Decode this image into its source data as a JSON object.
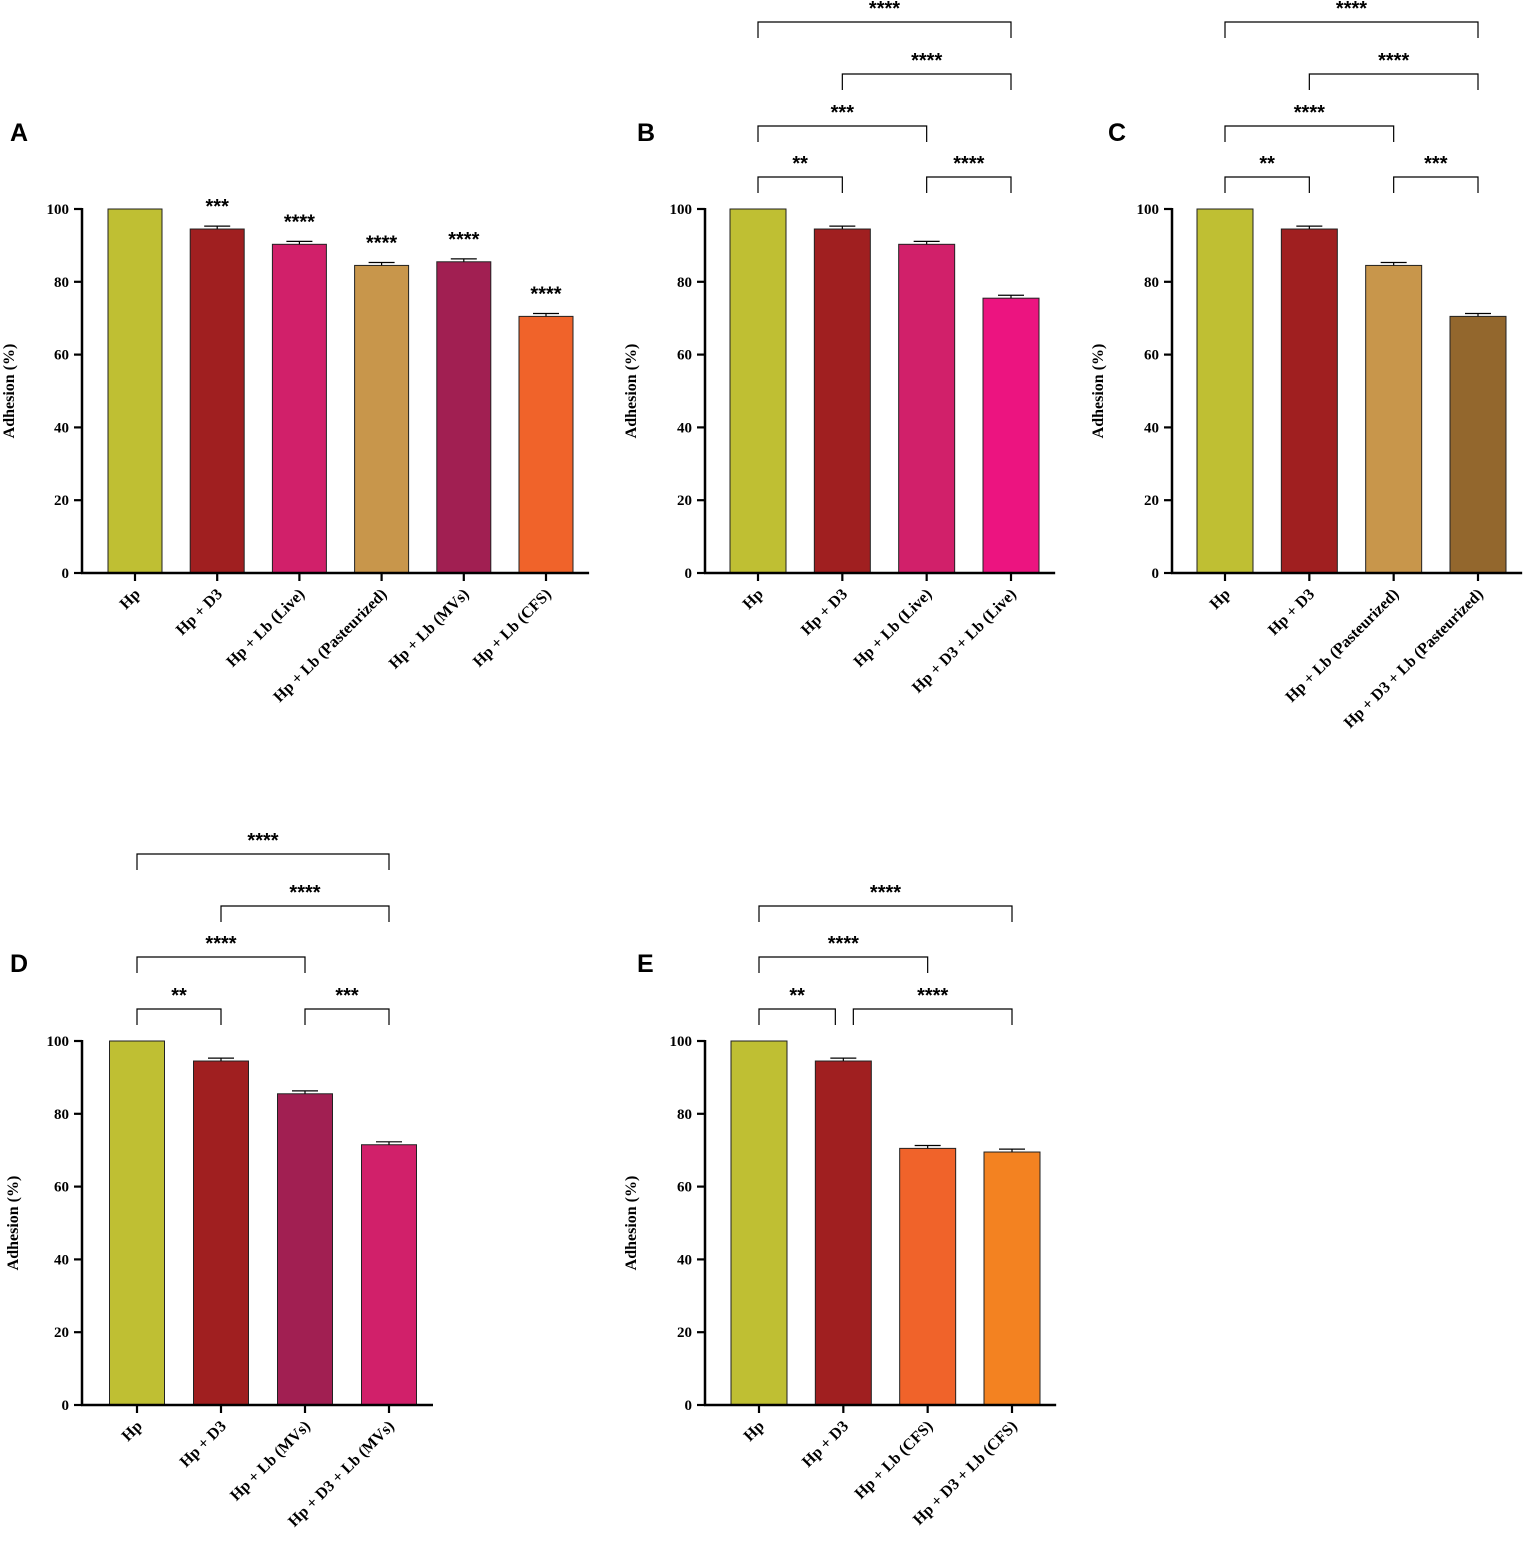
{
  "figure": {
    "ylabel": "Adhesion (%)"
  },
  "chart_data": [
    {
      "panel": "A",
      "type": "bar",
      "ylabel": "Adhesion (%)",
      "ylim": [
        0,
        100
      ],
      "yticks": [
        0,
        20,
        40,
        60,
        80,
        100
      ],
      "categories": [
        "Hp",
        "Hp + D3",
        "Hp + Lb (Live)",
        "Hp + Lb (Pasteurized)",
        "Hp + Lb (MVs)",
        "Hp + Lb (CFS)"
      ],
      "values": [
        100,
        94.5,
        90.3,
        84.5,
        85.5,
        70.5
      ],
      "errors": [
        0,
        0.8,
        0.8,
        0.8,
        0.8,
        0.8
      ],
      "colors": [
        "#bfbf33",
        "#a01f20",
        "#d1206a",
        "#c8964b",
        "#a11f52",
        "#f0632a"
      ],
      "bar_annotations": [
        "",
        "***",
        "****",
        "****",
        "****",
        "****"
      ],
      "brackets": []
    },
    {
      "panel": "B",
      "type": "bar",
      "ylabel": "Adhesion (%)",
      "ylim": [
        0,
        100
      ],
      "yticks": [
        0,
        20,
        40,
        60,
        80,
        100
      ],
      "categories": [
        "Hp",
        "Hp + D3",
        "Hp + Lb (Live)",
        "Hp + D3 + Lb (Live)"
      ],
      "values": [
        100,
        94.5,
        90.3,
        75.5
      ],
      "errors": [
        0,
        0.8,
        0.8,
        0.8
      ],
      "colors": [
        "#bfbf33",
        "#a01f20",
        "#d1206a",
        "#ec1480"
      ],
      "bar_annotations": [
        "",
        "",
        "",
        ""
      ],
      "brackets": [
        {
          "from": "Hp",
          "to": "Hp + D3 + Lb (Live)",
          "label": "****"
        },
        {
          "from": "Hp + D3",
          "to": "Hp + D3 + Lb (Live)",
          "label": "****"
        },
        {
          "from": "Hp",
          "to": "Hp + Lb (Live)",
          "label": "***"
        },
        {
          "from": "Hp",
          "to": "Hp + D3",
          "label": "**"
        },
        {
          "from": "Hp + Lb (Live)",
          "to": "Hp + D3 + Lb (Live)",
          "label": "****"
        }
      ]
    },
    {
      "panel": "C",
      "type": "bar",
      "ylabel": "Adhesion (%)",
      "ylim": [
        0,
        100
      ],
      "yticks": [
        0,
        20,
        40,
        60,
        80,
        100
      ],
      "categories": [
        "Hp",
        "Hp + D3",
        "Hp + Lb (Pasteurized)",
        "Hp + D3 + Lb (Pasteurized)"
      ],
      "values": [
        100,
        94.5,
        84.5,
        70.5
      ],
      "errors": [
        0,
        0.8,
        0.8,
        0.8
      ],
      "colors": [
        "#bfbf33",
        "#a01f20",
        "#c8964b",
        "#93672d"
      ],
      "bar_annotations": [
        "",
        "",
        "",
        ""
      ],
      "brackets": [
        {
          "from": "Hp",
          "to": "Hp + D3 + Lb (Pasteurized)",
          "label": "****"
        },
        {
          "from": "Hp + D3",
          "to": "Hp + D3 + Lb (Pasteurized)",
          "label": "****"
        },
        {
          "from": "Hp",
          "to": "Hp + Lb (Pasteurized)",
          "label": "****"
        },
        {
          "from": "Hp",
          "to": "Hp + D3",
          "label": "**"
        },
        {
          "from": "Hp + Lb (Pasteurized)",
          "to": "Hp + D3 + Lb (Pasteurized)",
          "label": "***"
        }
      ]
    },
    {
      "panel": "D",
      "type": "bar",
      "ylabel": "Adhesion (%)",
      "ylim": [
        0,
        100
      ],
      "yticks": [
        0,
        20,
        40,
        60,
        80,
        100
      ],
      "categories": [
        "Hp",
        "Hp + D3",
        "Hp + Lb (MVs)",
        "Hp + D3 + Lb (MVs)"
      ],
      "values": [
        100,
        94.5,
        85.5,
        71.5
      ],
      "errors": [
        0,
        0.8,
        0.8,
        0.8
      ],
      "colors": [
        "#bfbf33",
        "#a01f20",
        "#a11f52",
        "#d1206a"
      ],
      "bar_annotations": [
        "",
        "",
        "",
        ""
      ],
      "brackets": [
        {
          "from": "Hp",
          "to": "Hp + D3 + Lb (MVs)",
          "label": "****"
        },
        {
          "from": "Hp + D3",
          "to": "Hp + D3 + Lb (MVs)",
          "label": "****"
        },
        {
          "from": "Hp",
          "to": "Hp + Lb (MVs)",
          "label": "****"
        },
        {
          "from": "Hp",
          "to": "Hp + D3",
          "label": "**"
        },
        {
          "from": "Hp + Lb (MVs)",
          "to": "Hp + D3 + Lb (MVs)",
          "label": "***"
        }
      ]
    },
    {
      "panel": "E",
      "type": "bar",
      "ylabel": "Adhesion (%)",
      "ylim": [
        0,
        100
      ],
      "yticks": [
        0,
        20,
        40,
        60,
        80,
        100
      ],
      "categories": [
        "Hp",
        "Hp + D3",
        "Hp + Lb (CFS)",
        "Hp + D3 + Lb (CFS)"
      ],
      "values": [
        100,
        94.5,
        70.5,
        69.5
      ],
      "errors": [
        0,
        0.8,
        0.8,
        0.8
      ],
      "colors": [
        "#bfbf33",
        "#a01f20",
        "#f0632a",
        "#f38221"
      ],
      "bar_annotations": [
        "",
        "",
        "",
        ""
      ],
      "brackets": [
        {
          "from": "Hp",
          "to": "Hp + D3 + Lb (CFS)",
          "label": "****"
        },
        {
          "from": "Hp",
          "to": "Hp + Lb (CFS)",
          "label": "****"
        },
        {
          "from": "Hp",
          "to": "Hp + D3",
          "label": "**"
        },
        {
          "from": "Hp + D3",
          "to": "Hp + D3 + Lb (CFS)",
          "label": "****"
        }
      ]
    }
  ]
}
